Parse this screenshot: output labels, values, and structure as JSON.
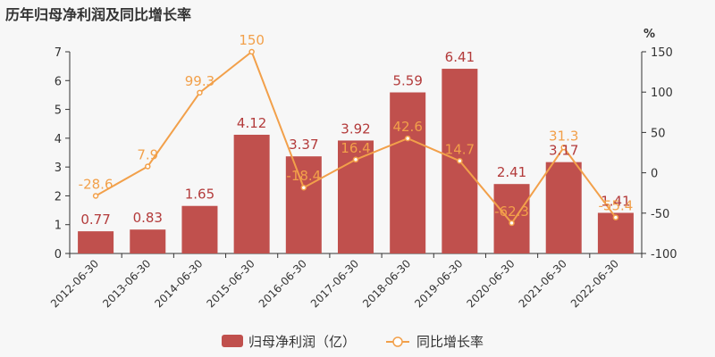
{
  "chart_data": {
    "type": "bar",
    "title": "历年归母净利润及同比增长率",
    "categories": [
      "2012-06-30",
      "2013-06-30",
      "2014-06-30",
      "2015-06-30",
      "2016-06-30",
      "2017-06-30",
      "2018-06-30",
      "2019-06-30",
      "2020-06-30",
      "2021-06-30",
      "2022-06-30"
    ],
    "series": [
      {
        "name": "归母净利润（亿）",
        "type": "bar",
        "axis": "left",
        "color": "#c0504d",
        "values": [
          0.77,
          0.83,
          1.65,
          4.12,
          3.37,
          3.92,
          5.59,
          6.41,
          2.41,
          3.17,
          1.41
        ]
      },
      {
        "name": "同比增长率",
        "type": "line",
        "axis": "right",
        "color": "#f2a04a",
        "values": [
          -28.6,
          7.9,
          99.3,
          150,
          -18.4,
          16.4,
          42.6,
          14.7,
          -62.3,
          31.3,
          -55.4
        ]
      }
    ],
    "y_left": {
      "min": 0,
      "max": 7,
      "ticks": [
        0,
        1,
        2,
        3,
        4,
        5,
        6,
        7
      ]
    },
    "y_right": {
      "label": "%",
      "min": -100,
      "max": 150,
      "ticks": [
        -100,
        -50,
        0,
        50,
        100,
        150
      ]
    },
    "legend_position": "bottom-center",
    "grid": false
  }
}
